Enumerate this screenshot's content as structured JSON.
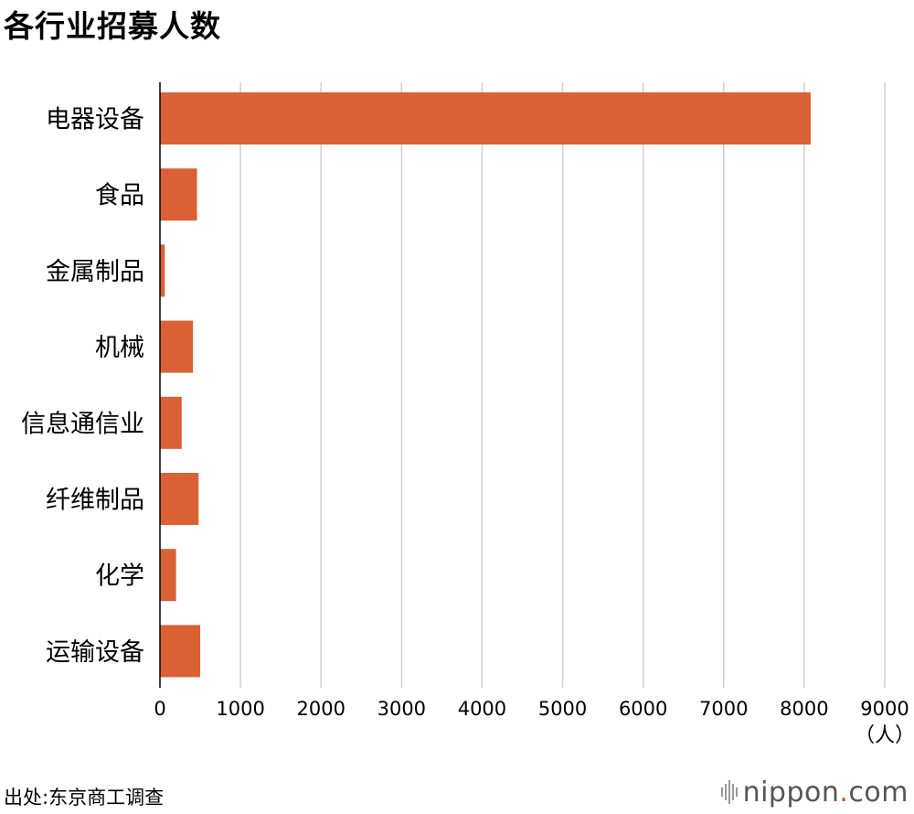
{
  "chart_data": {
    "type": "bar",
    "orientation": "horizontal",
    "title": "各行业招募人数",
    "categories": [
      "电器设备",
      "食品",
      "金属制品",
      "机械",
      "信息通信业",
      "纤维制品",
      "化学",
      "运输设备"
    ],
    "values": [
      8080,
      460,
      60,
      410,
      270,
      480,
      200,
      500
    ],
    "xlim": [
      0,
      9000
    ],
    "xticks": [
      "0",
      "1000",
      "2000",
      "3000",
      "4000",
      "5000",
      "6000",
      "7000",
      "8000",
      "9000"
    ],
    "xunit": "（人）",
    "grid": true,
    "bar_color": "#d96134",
    "legend": "none"
  },
  "source": "出处:东京商工调查",
  "logo": {
    "prefix": "nippon",
    "dot": ".",
    "suffix": "com"
  }
}
